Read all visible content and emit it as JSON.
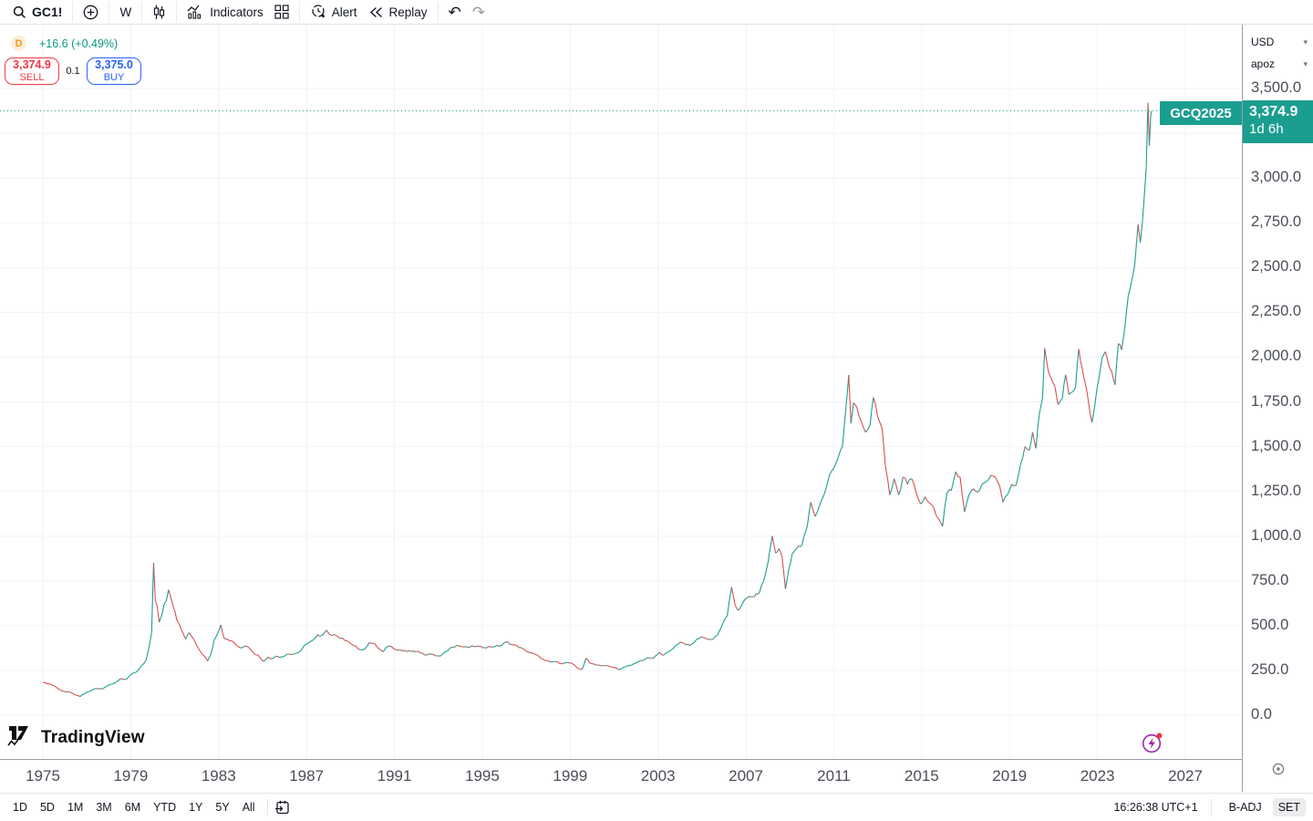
{
  "toolbar": {
    "symbol": "GC1!",
    "timeframe": "W",
    "indicators_label": "Indicators",
    "alert_label": "Alert",
    "replay_label": "Replay"
  },
  "chart_header": {
    "interval_badge": "D",
    "change_text": "+16.6 (+0.49%)",
    "sell_price": "3,374.9",
    "sell_label": "SELL",
    "spread": "0.1",
    "buy_price": "3,375.0",
    "buy_label": "BUY"
  },
  "price_scale": {
    "currency": "USD",
    "unit": "apoz",
    "symbol_tag": "GCQ2025",
    "last_price_text": "3,374.9",
    "countdown": "1d 6h"
  },
  "watermark": "TradingView",
  "bottom_bar": {
    "ranges": [
      "1D",
      "5D",
      "1M",
      "3M",
      "6M",
      "YTD",
      "1Y",
      "5Y",
      "All"
    ],
    "clock": "16:26:38 UTC+1",
    "adjust": "B-ADJ",
    "settings": "SET"
  },
  "colors": {
    "up": "#1b9e8f",
    "down": "#d94f4d",
    "grid": "#f0f3fa",
    "tag_bg": "#1b9e8f",
    "sell": "#f23645",
    "buy": "#2962ff",
    "badge_orange": "#f7931a",
    "last_price_line": "#1b9e8f"
  },
  "chart_data": {
    "type": "candlestick",
    "title": "Gold futures continuous contract (GC1!), weekly, 1975-2025",
    "symbol": "GC1!",
    "timeframe": "W",
    "currency": "USD",
    "unit": "apoz",
    "ylim": [
      0,
      3500
    ],
    "ytick_step": 250,
    "x_ticks": [
      1975,
      1979,
      1983,
      1987,
      1991,
      1995,
      1999,
      2003,
      2007,
      2011,
      2015,
      2019,
      2023,
      2027
    ],
    "x_range": [
      1975,
      2027.6
    ],
    "grid": true,
    "last_price": 3374.9,
    "change": 16.6,
    "change_pct": 0.49,
    "series": [
      [
        1975.0,
        183
      ],
      [
        1975.25,
        176
      ],
      [
        1975.5,
        166
      ],
      [
        1975.75,
        143
      ],
      [
        1976.0,
        131
      ],
      [
        1976.25,
        128
      ],
      [
        1976.5,
        112
      ],
      [
        1976.7,
        104
      ],
      [
        1976.85,
        118
      ],
      [
        1977.1,
        132
      ],
      [
        1977.4,
        149
      ],
      [
        1977.7,
        146
      ],
      [
        1978.0,
        168
      ],
      [
        1978.3,
        182
      ],
      [
        1978.55,
        205
      ],
      [
        1978.8,
        200
      ],
      [
        1979.0,
        227
      ],
      [
        1979.25,
        240
      ],
      [
        1979.5,
        277
      ],
      [
        1979.7,
        307
      ],
      [
        1979.85,
        390
      ],
      [
        1979.95,
        460
      ],
      [
        1980.04,
        850
      ],
      [
        1980.12,
        640
      ],
      [
        1980.2,
        610
      ],
      [
        1980.3,
        520
      ],
      [
        1980.42,
        560
      ],
      [
        1980.52,
        620
      ],
      [
        1980.62,
        640
      ],
      [
        1980.72,
        700
      ],
      [
        1980.82,
        660
      ],
      [
        1980.95,
        600
      ],
      [
        1981.1,
        530
      ],
      [
        1981.3,
        480
      ],
      [
        1981.5,
        425
      ],
      [
        1981.65,
        460
      ],
      [
        1981.8,
        435
      ],
      [
        1982.0,
        390
      ],
      [
        1982.15,
        360
      ],
      [
        1982.35,
        330
      ],
      [
        1982.5,
        302
      ],
      [
        1982.65,
        340
      ],
      [
        1982.8,
        420
      ],
      [
        1982.95,
        455
      ],
      [
        1983.1,
        505
      ],
      [
        1983.25,
        430
      ],
      [
        1983.4,
        425
      ],
      [
        1983.6,
        415
      ],
      [
        1983.8,
        390
      ],
      [
        1984.0,
        375
      ],
      [
        1984.2,
        385
      ],
      [
        1984.4,
        375
      ],
      [
        1984.6,
        345
      ],
      [
        1984.8,
        335
      ],
      [
        1985.05,
        300
      ],
      [
        1985.25,
        325
      ],
      [
        1985.45,
        315
      ],
      [
        1985.65,
        330
      ],
      [
        1985.85,
        325
      ],
      [
        1986.1,
        340
      ],
      [
        1986.3,
        340
      ],
      [
        1986.5,
        345
      ],
      [
        1986.7,
        355
      ],
      [
        1986.9,
        390
      ],
      [
        1987.1,
        405
      ],
      [
        1987.3,
        420
      ],
      [
        1987.5,
        450
      ],
      [
        1987.7,
        445
      ],
      [
        1987.9,
        475
      ],
      [
        1988.05,
        450
      ],
      [
        1988.25,
        450
      ],
      [
        1988.45,
        435
      ],
      [
        1988.65,
        430
      ],
      [
        1988.85,
        415
      ],
      [
        1989.05,
        395
      ],
      [
        1989.25,
        385
      ],
      [
        1989.45,
        365
      ],
      [
        1989.65,
        370
      ],
      [
        1989.85,
        405
      ],
      [
        1990.1,
        400
      ],
      [
        1990.3,
        370
      ],
      [
        1990.5,
        355
      ],
      [
        1990.7,
        385
      ],
      [
        1990.9,
        380
      ],
      [
        1991.1,
        365
      ],
      [
        1991.35,
        360
      ],
      [
        1991.6,
        355
      ],
      [
        1991.85,
        360
      ],
      [
        1992.1,
        355
      ],
      [
        1992.35,
        338
      ],
      [
        1992.6,
        343
      ],
      [
        1992.85,
        333
      ],
      [
        1993.1,
        330
      ],
      [
        1993.35,
        355
      ],
      [
        1993.6,
        380
      ],
      [
        1993.85,
        390
      ],
      [
        1994.1,
        382
      ],
      [
        1994.35,
        378
      ],
      [
        1994.6,
        385
      ],
      [
        1994.85,
        383
      ],
      [
        1995.1,
        378
      ],
      [
        1995.35,
        382
      ],
      [
        1995.6,
        385
      ],
      [
        1995.85,
        388
      ],
      [
        1996.1,
        410
      ],
      [
        1996.35,
        395
      ],
      [
        1996.6,
        385
      ],
      [
        1996.85,
        370
      ],
      [
        1997.1,
        352
      ],
      [
        1997.35,
        343
      ],
      [
        1997.6,
        326
      ],
      [
        1997.85,
        305
      ],
      [
        1998.1,
        297
      ],
      [
        1998.35,
        300
      ],
      [
        1998.6,
        288
      ],
      [
        1998.85,
        294
      ],
      [
        1999.1,
        287
      ],
      [
        1999.35,
        262
      ],
      [
        1999.55,
        256
      ],
      [
        1999.72,
        318
      ],
      [
        1999.9,
        290
      ],
      [
        2000.1,
        285
      ],
      [
        2000.35,
        278
      ],
      [
        2000.6,
        277
      ],
      [
        2000.85,
        270
      ],
      [
        2001.1,
        262
      ],
      [
        2001.3,
        257
      ],
      [
        2001.55,
        272
      ],
      [
        2001.8,
        280
      ],
      [
        2002.05,
        297
      ],
      [
        2002.3,
        305
      ],
      [
        2002.55,
        320
      ],
      [
        2002.8,
        318
      ],
      [
        2003.05,
        352
      ],
      [
        2003.25,
        335
      ],
      [
        2003.5,
        355
      ],
      [
        2003.75,
        382
      ],
      [
        2004.0,
        408
      ],
      [
        2004.2,
        400
      ],
      [
        2004.45,
        388
      ],
      [
        2004.7,
        415
      ],
      [
        2004.95,
        438
      ],
      [
        2005.2,
        428
      ],
      [
        2005.45,
        422
      ],
      [
        2005.7,
        445
      ],
      [
        2005.95,
        513
      ],
      [
        2006.15,
        555
      ],
      [
        2006.35,
        715
      ],
      [
        2006.5,
        620
      ],
      [
        2006.65,
        585
      ],
      [
        2006.85,
        625
      ],
      [
        2007.05,
        655
      ],
      [
        2007.3,
        662
      ],
      [
        2007.55,
        675
      ],
      [
        2007.8,
        745
      ],
      [
        2008.0,
        850
      ],
      [
        2008.2,
        1000
      ],
      [
        2008.35,
        905
      ],
      [
        2008.5,
        930
      ],
      [
        2008.65,
        880
      ],
      [
        2008.8,
        705
      ],
      [
        2008.95,
        815
      ],
      [
        2009.1,
        900
      ],
      [
        2009.3,
        930
      ],
      [
        2009.55,
        950
      ],
      [
        2009.8,
        1060
      ],
      [
        2009.95,
        1190
      ],
      [
        2010.15,
        1110
      ],
      [
        2010.35,
        1170
      ],
      [
        2010.55,
        1230
      ],
      [
        2010.8,
        1340
      ],
      [
        2011.0,
        1380
      ],
      [
        2011.2,
        1440
      ],
      [
        2011.4,
        1505
      ],
      [
        2011.6,
        1780
      ],
      [
        2011.68,
        1900
      ],
      [
        2011.78,
        1630
      ],
      [
        2011.9,
        1745
      ],
      [
        2012.05,
        1720
      ],
      [
        2012.25,
        1640
      ],
      [
        2012.45,
        1580
      ],
      [
        2012.65,
        1620
      ],
      [
        2012.8,
        1775
      ],
      [
        2013.0,
        1665
      ],
      [
        2013.2,
        1600
      ],
      [
        2013.35,
        1390
      ],
      [
        2013.55,
        1230
      ],
      [
        2013.75,
        1320
      ],
      [
        2013.95,
        1230
      ],
      [
        2014.15,
        1330
      ],
      [
        2014.35,
        1290
      ],
      [
        2014.55,
        1320
      ],
      [
        2014.75,
        1240
      ],
      [
        2014.95,
        1180
      ],
      [
        2015.15,
        1220
      ],
      [
        2015.35,
        1185
      ],
      [
        2015.55,
        1160
      ],
      [
        2015.75,
        1100
      ],
      [
        2015.95,
        1055
      ],
      [
        2016.15,
        1240
      ],
      [
        2016.35,
        1255
      ],
      [
        2016.55,
        1360
      ],
      [
        2016.75,
        1330
      ],
      [
        2016.95,
        1135
      ],
      [
        2017.15,
        1230
      ],
      [
        2017.35,
        1265
      ],
      [
        2017.55,
        1245
      ],
      [
        2017.75,
        1290
      ],
      [
        2017.95,
        1305
      ],
      [
        2018.15,
        1340
      ],
      [
        2018.35,
        1330
      ],
      [
        2018.55,
        1280
      ],
      [
        2018.7,
        1190
      ],
      [
        2018.9,
        1230
      ],
      [
        2019.1,
        1290
      ],
      [
        2019.3,
        1285
      ],
      [
        2019.5,
        1400
      ],
      [
        2019.7,
        1500
      ],
      [
        2019.9,
        1480
      ],
      [
        2020.05,
        1580
      ],
      [
        2020.2,
        1490
      ],
      [
        2020.35,
        1680
      ],
      [
        2020.5,
        1770
      ],
      [
        2020.6,
        2050
      ],
      [
        2020.75,
        1930
      ],
      [
        2020.9,
        1880
      ],
      [
        2021.05,
        1840
      ],
      [
        2021.2,
        1735
      ],
      [
        2021.4,
        1770
      ],
      [
        2021.55,
        1900
      ],
      [
        2021.7,
        1790
      ],
      [
        2021.85,
        1805
      ],
      [
        2022.0,
        1830
      ],
      [
        2022.15,
        2045
      ],
      [
        2022.3,
        1940
      ],
      [
        2022.45,
        1850
      ],
      [
        2022.6,
        1740
      ],
      [
        2022.75,
        1635
      ],
      [
        2022.9,
        1750
      ],
      [
        2023.05,
        1870
      ],
      [
        2023.2,
        1990
      ],
      [
        2023.35,
        2030
      ],
      [
        2023.5,
        1960
      ],
      [
        2023.65,
        1920
      ],
      [
        2023.8,
        1845
      ],
      [
        2023.95,
        2075
      ],
      [
        2024.1,
        2040
      ],
      [
        2024.25,
        2170
      ],
      [
        2024.4,
        2340
      ],
      [
        2024.55,
        2420
      ],
      [
        2024.7,
        2520
      ],
      [
        2024.85,
        2740
      ],
      [
        2024.95,
        2640
      ],
      [
        2025.05,
        2760
      ],
      [
        2025.15,
        2930
      ],
      [
        2025.22,
        3060
      ],
      [
        2025.3,
        3420
      ],
      [
        2025.36,
        3180
      ],
      [
        2025.42,
        3340
      ],
      [
        2025.45,
        3375
      ]
    ]
  }
}
